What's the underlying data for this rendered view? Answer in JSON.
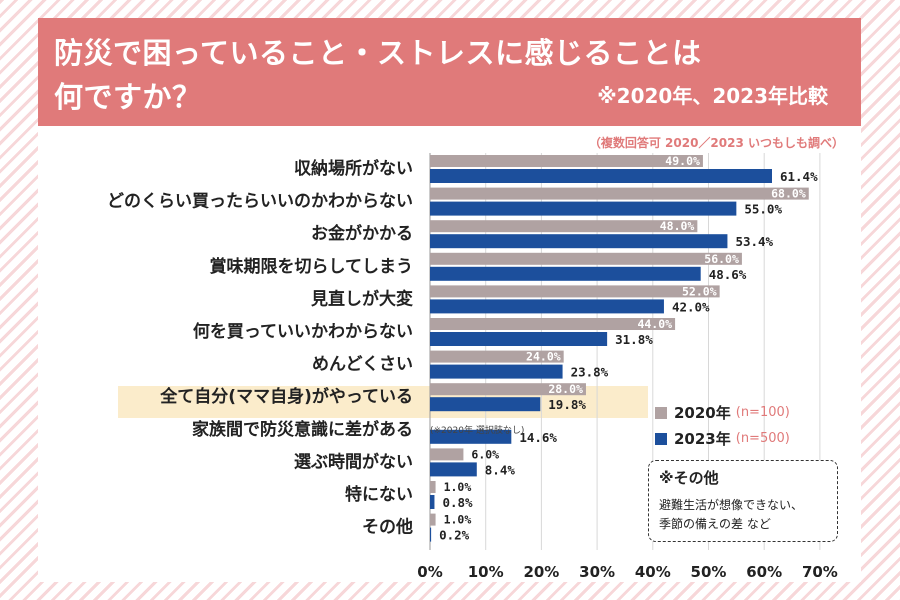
{
  "header": {
    "title_line1": "防災で困っていること・ストレスに感じることは",
    "title_line2": "何ですか？",
    "compare_note": "※2020年、2023年比較"
  },
  "subtitle_note": "（複数回答可 2020／2023 いつもしも調べ）",
  "colors": {
    "accent": "#e07a7a",
    "s2020": "#b0a2a2",
    "s2023": "#1c4f9c",
    "highlight": "#fbeccb"
  },
  "legend": [
    {
      "label": "2020年",
      "n": "(n=100)"
    },
    {
      "label": "2023年",
      "n": "(n=500)"
    }
  ],
  "other_box": {
    "title": "※その他",
    "line1": "避難生活が想像できない、",
    "line2": "季節の備えの差 など"
  },
  "note_2020": "(※2020年 選択肢なし)",
  "chart_data": {
    "type": "bar",
    "orientation": "horizontal",
    "categories": [
      "収納場所がない",
      "どのくらい買ったらいいのかわからない",
      "お金がかかる",
      "賞味期限を切らしてしまう",
      "見直しが大変",
      "何を買っていいかわからない",
      "めんどくさい",
      "全て自分(ママ自身)がやっている",
      "家族間で防災意識に差がある",
      "選ぶ時間がない",
      "特にない",
      "その他"
    ],
    "highlight_category": "全て自分(ママ自身)がやっている",
    "series": [
      {
        "name": "2020年",
        "values": [
          49.0,
          68.0,
          48.0,
          56.0,
          52.0,
          44.0,
          24.0,
          28.0,
          null,
          6.0,
          1.0,
          1.0
        ],
        "labels": [
          "49.0%",
          "68.0%",
          "48.0%",
          "56.0%",
          "52.0%",
          "44.0%",
          "24.0%",
          "28.0%",
          "",
          "6.0%",
          "1.0%",
          "1.0%"
        ]
      },
      {
        "name": "2023年",
        "values": [
          61.4,
          55.0,
          53.4,
          48.6,
          42.0,
          31.8,
          23.8,
          19.8,
          14.6,
          8.4,
          0.8,
          0.2
        ],
        "labels": [
          "61.4%",
          "55.0%",
          "53.4%",
          "48.6%",
          "42.0%",
          "31.8%",
          "23.8%",
          "19.8%",
          "14.6%",
          "8.4%",
          "0.8%",
          "0.2%"
        ]
      }
    ],
    "xlim": [
      0,
      70
    ],
    "xticks": [
      "0%",
      "10%",
      "20%",
      "30%",
      "40%",
      "50%",
      "60%",
      "70%"
    ]
  }
}
